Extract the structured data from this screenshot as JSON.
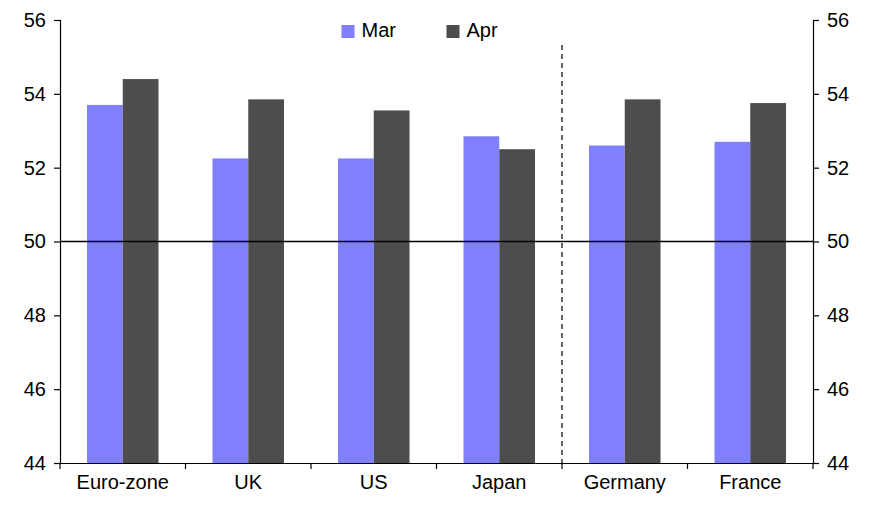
{
  "chart_data": {
    "type": "bar",
    "categories": [
      "Euro-zone",
      "UK",
      "US",
      "Japan",
      "Germany",
      "France"
    ],
    "series": [
      {
        "name": "Mar",
        "color": "#8080ff",
        "values": [
          53.7,
          52.25,
          52.25,
          52.85,
          52.6,
          52.7
        ]
      },
      {
        "name": "Apr",
        "color": "#4d4d4d",
        "values": [
          54.4,
          53.85,
          53.55,
          52.5,
          53.85,
          53.75
        ]
      }
    ],
    "ylim": [
      44,
      56
    ],
    "yticks": [
      44,
      46,
      48,
      50,
      52,
      54,
      56
    ],
    "y2lim": [
      44,
      56
    ],
    "y2ticks": [
      44,
      46,
      48,
      50,
      52,
      54,
      56
    ],
    "reference_line": 50,
    "legend": "top"
  }
}
